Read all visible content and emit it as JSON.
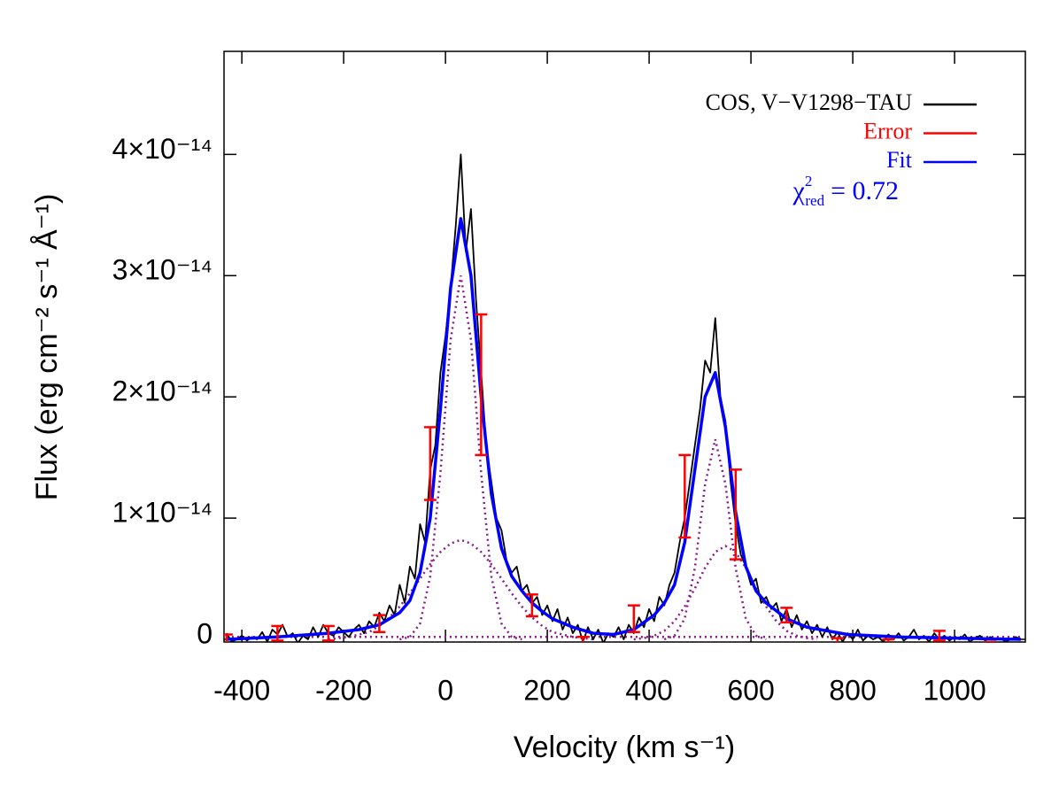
{
  "chart_data": {
    "type": "line",
    "xlabel": "Velocity (km s⁻¹)",
    "ylabel": "Flux (erg cm⁻² s⁻¹ Å⁻¹)",
    "xlim": [
      -435,
      1139
    ],
    "ylim": [
      -2.2e-16,
      4.85e-14
    ],
    "xticks": [
      -400,
      -200,
      0,
      200,
      400,
      600,
      800,
      1000
    ],
    "yticks": [
      0,
      {
        "value": 1e-14,
        "label": "1×10⁻¹⁴"
      },
      {
        "value": 2e-14,
        "label": "2×10⁻¹⁴"
      },
      {
        "value": 3e-14,
        "label": "3×10⁻¹⁴"
      },
      {
        "value": 4e-14,
        "label": "4×10⁻¹⁴"
      }
    ],
    "legend": "upper right",
    "annotation": {
      "symbol": "χ",
      "sup": "2",
      "sub": "red",
      "text": "= 0.72",
      "color": "#0000ff"
    },
    "series": [
      {
        "name": "COS, V−V1298−TAU",
        "color": "#000000",
        "x": [
          -430,
          -420,
          -410,
          -400,
          -390,
          -380,
          -370,
          -360,
          -350,
          -340,
          -330,
          -320,
          -310,
          -300,
          -290,
          -280,
          -270,
          -260,
          -250,
          -240,
          -230,
          -220,
          -210,
          -200,
          -190,
          -180,
          -170,
          -160,
          -150,
          -140,
          -130,
          -120,
          -110,
          -100,
          -90,
          -80,
          -70,
          -60,
          -50,
          -40,
          -30,
          -20,
          -10,
          0,
          10,
          20,
          30,
          40,
          50,
          60,
          70,
          80,
          90,
          100,
          110,
          120,
          130,
          140,
          150,
          160,
          170,
          180,
          190,
          200,
          210,
          220,
          230,
          240,
          250,
          260,
          270,
          280,
          290,
          300,
          310,
          320,
          330,
          340,
          350,
          360,
          370,
          380,
          390,
          400,
          410,
          420,
          430,
          440,
          450,
          460,
          470,
          480,
          490,
          500,
          510,
          520,
          530,
          540,
          550,
          560,
          570,
          580,
          590,
          600,
          610,
          620,
          630,
          640,
          650,
          660,
          670,
          680,
          690,
          700,
          710,
          720,
          730,
          740,
          750,
          760,
          770,
          780,
          790,
          800,
          810,
          820,
          830,
          840,
          850,
          860,
          870,
          880,
          890,
          900,
          910,
          920,
          930,
          940,
          950,
          960,
          970,
          980,
          990,
          1000,
          1010,
          1020,
          1030,
          1040,
          1050,
          1060,
          1070,
          1080,
          1090,
          1100,
          1110,
          1120,
          1130
        ],
        "values": [
          5e-16,
          -2e-16,
          0.0,
          3e-16,
          -1e-16,
          2e-16,
          0.0,
          6e-16,
          -2e-16,
          8e-16,
          4e-16,
          1.2e-15,
          2e-16,
          5e-16,
          -3e-16,
          3e-16,
          0.0,
          1e-15,
          2e-16,
          1.2e-15,
          5e-16,
          3e-16,
          1e-15,
          6e-16,
          2e-16,
          8e-16,
          1.2e-15,
          5e-16,
          1.5e-15,
          1e-15,
          2.2e-15,
          1.5e-15,
          2.8e-15,
          2e-15,
          4.5e-15,
          3e-15,
          6e-15,
          5e-15,
          9.5e-15,
          8e-15,
          1.4e-14,
          1.6e-14,
          2.2e-14,
          2.5e-14,
          2.9e-14,
          3.4e-14,
          4e-14,
          3.2e-14,
          3.55e-14,
          2.8e-14,
          2.2e-14,
          1.6e-14,
          1.3e-14,
          1e-14,
          9e-15,
          6.5e-15,
          5.5e-15,
          6e-15,
          4e-15,
          4.5e-15,
          3e-15,
          3.5e-15,
          2e-15,
          2.8e-15,
          1.5e-15,
          2.5e-15,
          8e-16,
          1.8e-15,
          5e-16,
          1.2e-15,
          -2e-16,
          1e-15,
          0.0,
          8e-16,
          -3e-16,
          5e-16,
          2e-16,
          1e-15,
          0.0,
          1.2e-15,
          5e-16,
          1.8e-15,
          1e-15,
          2.5e-15,
          1.5e-15,
          3.5e-15,
          2.8e-15,
          4.5e-15,
          5.5e-15,
          8e-15,
          1e-14,
          1.3e-14,
          1.6e-14,
          1.9e-14,
          2.3e-14,
          2.2e-14,
          2.65e-14,
          2e-14,
          1.8e-14,
          1.3e-14,
          9.5e-15,
          7e-15,
          6e-15,
          4.5e-15,
          5e-15,
          3e-15,
          3.5e-15,
          2.5e-15,
          3e-15,
          1.5e-15,
          2.5e-15,
          1e-15,
          2e-15,
          8e-16,
          1.5e-15,
          5e-16,
          1.2e-15,
          2e-16,
          1e-15,
          0.0,
          6e-16,
          -2e-16,
          5e-16,
          0.0,
          8e-16,
          -1e-16,
          3e-16,
          0.0,
          2e-16,
          -2e-16,
          4e-16,
          0.0,
          5e-16,
          -1e-16,
          2e-16,
          8e-16,
          0.0,
          3e-16,
          -2e-16,
          5e-16,
          0.0,
          3e-16,
          -1e-16,
          2e-16,
          0.0,
          4e-16,
          -2e-16,
          1e-16,
          3e-16,
          -1e-16,
          2e-16,
          0.0,
          1e-16,
          -2e-16,
          0.0,
          2e-16,
          0.0
        ]
      },
      {
        "name": "Error",
        "color": "#ff0000",
        "type": "errorbar",
        "x": [
          -430,
          -330,
          -230,
          -130,
          -30,
          70,
          170,
          270,
          370,
          470,
          570,
          670,
          770,
          870,
          970,
          1070
        ],
        "values": [
          0.0,
          5e-16,
          5e-16,
          1.3e-15,
          1.45e-14,
          2.1e-14,
          2.8e-15,
          -2e-16,
          1.7e-15,
          1.18e-14,
          1.03e-14,
          2e-15,
          -2e-16,
          -3e-16,
          3e-16,
          -6e-16
        ],
        "errors": [
          4e-16,
          6e-16,
          6e-16,
          7e-16,
          3e-15,
          5.8e-15,
          9e-16,
          4e-16,
          1.1e-15,
          3.4e-15,
          3.7e-15,
          6e-16,
          3e-16,
          3e-16,
          4e-16,
          4e-16
        ]
      },
      {
        "name": "Fit",
        "color": "#0000ff",
        "x": [
          -430,
          -330,
          -230,
          -170,
          -130,
          -90,
          -70,
          -50,
          -30,
          -10,
          10,
          30,
          50,
          70,
          90,
          110,
          130,
          150,
          170,
          190,
          210,
          250,
          290,
          330,
          370,
          410,
          430,
          450,
          470,
          490,
          510,
          530,
          550,
          570,
          590,
          610,
          630,
          670,
          710,
          790,
          890,
          1130
        ],
        "values": [
          0.0,
          2e-16,
          5e-16,
          8e-16,
          1.2e-15,
          2.2e-15,
          3.2e-15,
          5.5e-15,
          1e-14,
          1.9e-14,
          2.9e-14,
          3.47e-14,
          3e-14,
          2e-14,
          1.2e-14,
          7.5e-15,
          5.2e-15,
          4e-15,
          3e-15,
          2.3e-15,
          1.7e-15,
          1e-15,
          5e-16,
          4e-16,
          8e-16,
          2e-15,
          3e-15,
          4.5e-15,
          8e-15,
          1.4e-14,
          2e-14,
          2.2e-14,
          1.75e-14,
          1.05e-14,
          6e-15,
          4e-15,
          3e-15,
          1.7e-15,
          1e-15,
          4e-16,
          2e-16,
          0.0
        ]
      }
    ],
    "components": [
      {
        "color": "#8b1a8b",
        "x": [
          -90,
          -70,
          -50,
          -30,
          -10,
          10,
          30,
          50,
          70,
          90,
          110,
          130,
          150
        ],
        "values": [
          0.0,
          2e-16,
          1.3e-15,
          5.2e-15,
          1.37e-14,
          2.47e-14,
          3e-14,
          2.47e-14,
          1.37e-14,
          5.2e-15,
          1.3e-15,
          2e-16,
          0.0
        ]
      },
      {
        "color": "#8b1a8b",
        "x": [
          -230,
          -210,
          -190,
          -170,
          -150,
          -130,
          -110,
          -90,
          -70,
          -50,
          -30,
          -10,
          10,
          30,
          50,
          70,
          90,
          110,
          130,
          150,
          170,
          190,
          210,
          230,
          250,
          270,
          290
        ],
        "values": [
          0.0,
          1e-16,
          2e-16,
          4e-16,
          6e-16,
          1.1e-15,
          1.8e-15,
          2.7e-15,
          3.8e-15,
          5e-15,
          6.2e-15,
          7.2e-15,
          7.9e-15,
          8.2e-15,
          7.9e-15,
          7.2e-15,
          6.2e-15,
          5e-15,
          3.8e-15,
          2.7e-15,
          1.8e-15,
          1.1e-15,
          6e-16,
          4e-16,
          2e-16,
          1e-16,
          0.0
        ]
      },
      {
        "color": "#8b1a8b",
        "x": [
          430,
          450,
          470,
          490,
          510,
          530,
          550,
          570,
          590,
          610,
          630
        ],
        "values": [
          0.0,
          3e-16,
          1.7e-15,
          5.9e-15,
          1.28e-14,
          1.65e-14,
          1.28e-14,
          5.9e-15,
          1.7e-15,
          3e-16,
          0.0
        ]
      },
      {
        "color": "#8b1a8b",
        "x": [
          370,
          390,
          410,
          430,
          450,
          470,
          490,
          510,
          530,
          550,
          570,
          590,
          610,
          630,
          650,
          670,
          690,
          710,
          730
        ],
        "values": [
          0.0,
          1e-16,
          3e-16,
          7e-16,
          1.5e-15,
          2.7e-15,
          4.2e-15,
          5.9e-15,
          7.2e-15,
          7.7e-15,
          7.2e-15,
          5.9e-15,
          4.2e-15,
          2.7e-15,
          1.5e-15,
          7e-16,
          3e-16,
          1e-16,
          0.0
        ]
      },
      {
        "color": "#8b1a8b",
        "x": [
          -430,
          1130
        ],
        "values": [
          2e-16,
          2e-16
        ]
      }
    ]
  }
}
